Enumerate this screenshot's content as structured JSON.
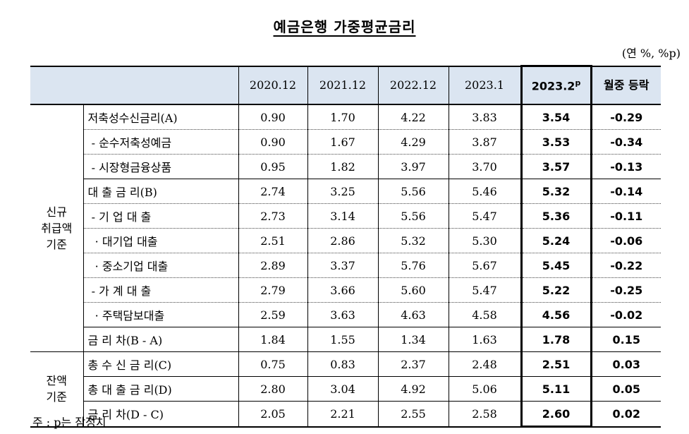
{
  "title": "예금은행 가중평균금리",
  "unit": "(연 %, %p)",
  "header": {
    "cols": [
      "2020.12",
      "2021.12",
      "2022.12",
      "2023.1"
    ],
    "highlight_main": "2023.2",
    "highlight_sup": "p",
    "change": "월중 등락"
  },
  "groups": {
    "new": "신규 취급액 기준",
    "balance": "잔액 기준"
  },
  "rows": [
    {
      "label": "저축성수신금리(A)",
      "v": [
        "0.90",
        "1.70",
        "4.22",
        "3.83"
      ],
      "h": "3.54",
      "c": "-0.29"
    },
    {
      "label": " - 순수저축성예금",
      "v": [
        "0.90",
        "1.67",
        "4.29",
        "3.87"
      ],
      "h": "3.53",
      "c": "-0.34"
    },
    {
      "label": " - 시장형금융상품",
      "v": [
        "0.95",
        "1.82",
        "3.97",
        "3.70"
      ],
      "h": "3.57",
      "c": "-0.13"
    },
    {
      "label": "대 출 금 리(B)",
      "v": [
        "2.74",
        "3.25",
        "5.56",
        "5.46"
      ],
      "h": "5.32",
      "c": "-0.14"
    },
    {
      "label": " - 기 업 대 출",
      "v": [
        "2.73",
        "3.14",
        "5.56",
        "5.47"
      ],
      "h": "5.36",
      "c": "-0.11"
    },
    {
      "label": "  · 대기업 대출",
      "v": [
        "2.51",
        "2.86",
        "5.32",
        "5.30"
      ],
      "h": "5.24",
      "c": "-0.06"
    },
    {
      "label": "  · 중소기업 대출",
      "v": [
        "2.89",
        "3.37",
        "5.76",
        "5.67"
      ],
      "h": "5.45",
      "c": "-0.22"
    },
    {
      "label": " - 가 계 대 출",
      "v": [
        "2.79",
        "3.66",
        "5.60",
        "5.47"
      ],
      "h": "5.22",
      "c": "-0.25"
    },
    {
      "label": "  · 주택담보대출",
      "v": [
        "2.59",
        "3.63",
        "4.63",
        "4.58"
      ],
      "h": "4.56",
      "c": "-0.02"
    },
    {
      "label": "금 리 차(B - A)",
      "v": [
        "1.84",
        "1.55",
        "1.34",
        "1.63"
      ],
      "h": "1.78",
      "c": "0.15"
    },
    {
      "label": "총 수 신 금 리(C)",
      "v": [
        "0.75",
        "0.83",
        "2.37",
        "2.48"
      ],
      "h": "2.51",
      "c": "0.03"
    },
    {
      "label": "총 대 출 금 리(D)",
      "v": [
        "2.80",
        "3.04",
        "4.92",
        "5.06"
      ],
      "h": "5.11",
      "c": "0.05"
    },
    {
      "label": "금 리 차(D - C)",
      "v": [
        "2.05",
        "2.21",
        "2.55",
        "2.58"
      ],
      "h": "2.60",
      "c": "0.02"
    }
  ],
  "note": "주 : p는 잠정치"
}
